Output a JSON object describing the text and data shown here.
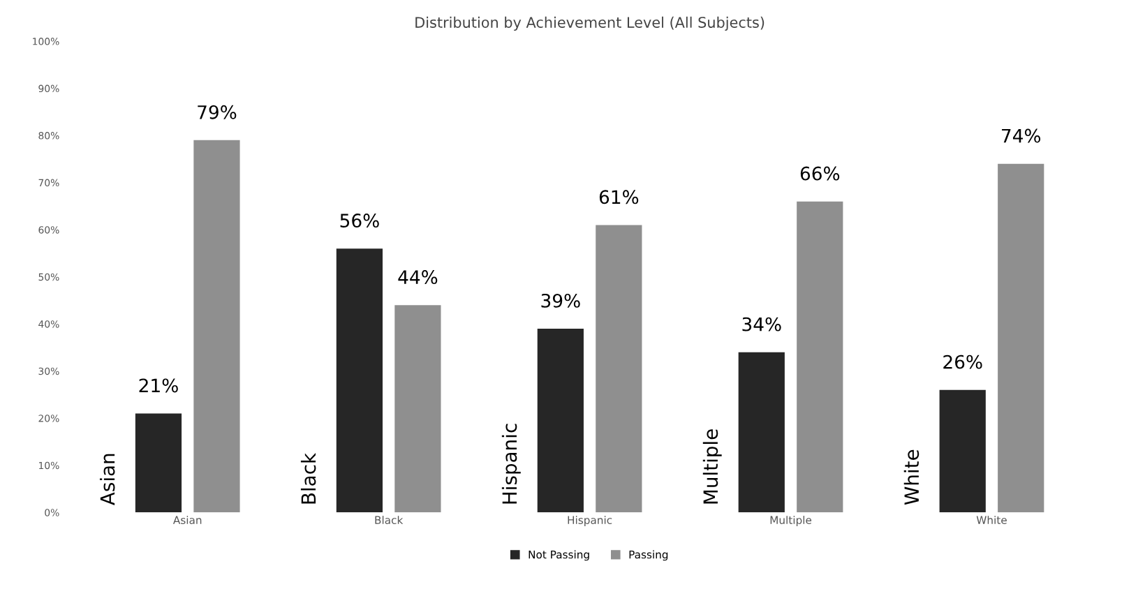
{
  "chart_data": {
    "type": "bar",
    "title": "Distribution by Achievement Level (All Subjects)",
    "categories": [
      "Asian",
      "Black",
      "Hispanic",
      "Multiple",
      "White"
    ],
    "series": [
      {
        "name": "Not Passing",
        "color": "#262626",
        "values": [
          21,
          56,
          39,
          34,
          26
        ],
        "value_labels": [
          "21%",
          "56%",
          "39%",
          "34%",
          "26%"
        ]
      },
      {
        "name": "Passing",
        "color": "#8f8f8f",
        "values": [
          79,
          44,
          61,
          66,
          74
        ],
        "value_labels": [
          "79%",
          "44%",
          "61%",
          "66%",
          "74%"
        ]
      }
    ],
    "annotations": [
      "Asian",
      "Black",
      "Hispanic",
      "Multiple",
      "White"
    ],
    "ylim": [
      0,
      100
    ],
    "yticks": [
      {
        "value": 0,
        "label": "0%"
      },
      {
        "value": 10,
        "label": "10%"
      },
      {
        "value": 20,
        "label": "20%"
      },
      {
        "value": 30,
        "label": "30%"
      },
      {
        "value": 40,
        "label": "40%"
      },
      {
        "value": 50,
        "label": "50%"
      },
      {
        "value": 60,
        "label": "60%"
      },
      {
        "value": 70,
        "label": "70%"
      },
      {
        "value": 80,
        "label": "80%"
      },
      {
        "value": 90,
        "label": "90%"
      },
      {
        "value": 100,
        "label": "100%"
      }
    ],
    "grid": false,
    "legend": "bottom"
  }
}
